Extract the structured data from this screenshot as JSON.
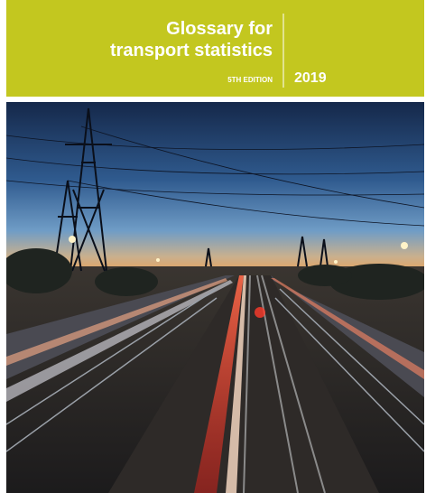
{
  "cover": {
    "title_lines": [
      "Glossary for",
      "transport statistics"
    ],
    "edition": "5TH EDITION",
    "year": "2019"
  }
}
